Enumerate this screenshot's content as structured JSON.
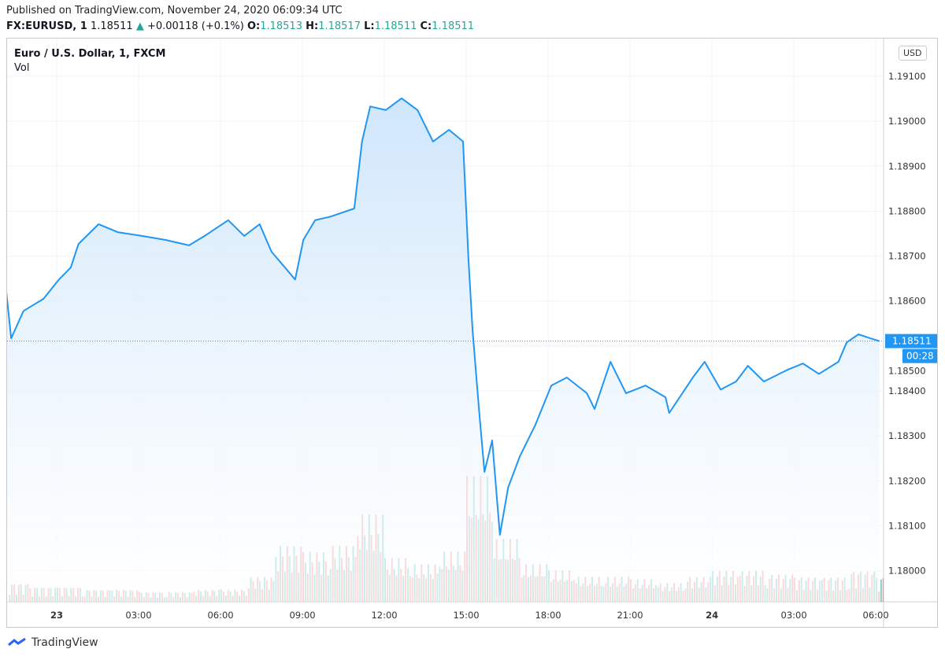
{
  "header": {
    "published": "Published on TradingView.com, November 24, 2020 06:09:34 UTC",
    "symbol": "FX:EURUSD, 1",
    "last": "1.18511",
    "change": "+0.00118 (+0.1%)",
    "o_label": "O:",
    "o": "1.18513",
    "h_label": "H:",
    "h": "1.18517",
    "l_label": "L:",
    "l": "1.18511",
    "c_label": "C:",
    "c": "1.18511"
  },
  "legend": {
    "title": "Euro / U.S. Dollar, 1, FXCM",
    "vol": "Vol"
  },
  "currency_button": "USD",
  "brand": "TradingView",
  "colors": {
    "line": "#2196f3",
    "area_top": "#cfe6fb",
    "vol_up": "#26a69a",
    "vol_down": "#ef5350",
    "price_tag": "#2196f3"
  },
  "chart_data": {
    "type": "area",
    "ylim": [
      1.1793,
      1.1913
    ],
    "grid": true,
    "y_ticks": [
      "1.18000",
      "1.18100",
      "1.18200",
      "1.18300",
      "1.18400",
      "1.18500",
      "1.18600",
      "1.18700",
      "1.18800",
      "1.18900",
      "1.19000",
      "1.19100"
    ],
    "x_ticks": [
      {
        "t": "11-23 00:00",
        "label": "23"
      },
      {
        "t": "11-23 03:00",
        "label": "03:00"
      },
      {
        "t": "11-23 06:00",
        "label": "06:00"
      },
      {
        "t": "11-23 09:00",
        "label": "09:00"
      },
      {
        "t": "11-23 12:00",
        "label": "12:00"
      },
      {
        "t": "11-23 15:00",
        "label": "15:00"
      },
      {
        "t": "11-23 18:00",
        "label": "18:00"
      },
      {
        "t": "11-23 21:00",
        "label": "21:00"
      },
      {
        "t": "11-24 00:00",
        "label": "24"
      },
      {
        "t": "11-24 03:00",
        "label": "03:00"
      },
      {
        "t": "11-24 06:00",
        "label": "06:00"
      }
    ],
    "current_price": "1.18511",
    "countdown": "00:28",
    "series": [
      [
        "11-22 22:09",
        1.18622
      ],
      [
        "11-22 22:20",
        1.18517
      ],
      [
        "11-22 22:47",
        1.18578
      ],
      [
        "11-22 23:31",
        1.18605
      ],
      [
        "11-23 00:05",
        1.18648
      ],
      [
        "11-23 00:31",
        1.18675
      ],
      [
        "11-23 00:48",
        1.18727
      ],
      [
        "11-23 01:32",
        1.18771
      ],
      [
        "11-23 02:15",
        1.18753
      ],
      [
        "11-23 03:07",
        1.18745
      ],
      [
        "11-23 03:59",
        1.18736
      ],
      [
        "11-23 04:51",
        1.18724
      ],
      [
        "11-23 05:25",
        1.18745
      ],
      [
        "11-23 06:17",
        1.1878
      ],
      [
        "11-23 06:52",
        1.18745
      ],
      [
        "11-23 07:26",
        1.18771
      ],
      [
        "11-23 07:52",
        1.1871
      ],
      [
        "11-23 08:44",
        1.18648
      ],
      [
        "11-23 09:02",
        1.18736
      ],
      [
        "11-23 09:28",
        1.1878
      ],
      [
        "11-23 10:02",
        1.18788
      ],
      [
        "11-23 10:54",
        1.18806
      ],
      [
        "11-23 11:11",
        1.18955
      ],
      [
        "11-23 11:29",
        1.19033
      ],
      [
        "11-23 12:03",
        1.19025
      ],
      [
        "11-23 12:38",
        1.19051
      ],
      [
        "11-23 13:13",
        1.19025
      ],
      [
        "11-23 13:47",
        1.18955
      ],
      [
        "11-23 14:22",
        1.18981
      ],
      [
        "11-23 14:53",
        1.18955
      ],
      [
        "11-23 15:05",
        1.18692
      ],
      [
        "11-23 15:14",
        1.18535
      ],
      [
        "11-23 15:28",
        1.1836
      ],
      [
        "11-23 15:40",
        1.1822
      ],
      [
        "11-23 15:57",
        1.1829
      ],
      [
        "11-23 16:14",
        1.1808
      ],
      [
        "11-23 16:32",
        1.18185
      ],
      [
        "11-23 16:58",
        1.18255
      ],
      [
        "11-23 17:32",
        1.18325
      ],
      [
        "11-23 18:07",
        1.18412
      ],
      [
        "11-23 18:41",
        1.1843
      ],
      [
        "11-23 19:25",
        1.18395
      ],
      [
        "11-23 19:42",
        1.1836
      ],
      [
        "11-23 20:17",
        1.18465
      ],
      [
        "11-23 20:51",
        1.18395
      ],
      [
        "11-23 21:34",
        1.18412
      ],
      [
        "11-23 22:18",
        1.18386
      ],
      [
        "11-23 22:26",
        1.18351
      ],
      [
        "11-23 23:18",
        1.1843
      ],
      [
        "11-23 23:44",
        1.18465
      ],
      [
        "11-24 00:19",
        1.18403
      ],
      [
        "11-24 00:53",
        1.18421
      ],
      [
        "11-24 01:19",
        1.18456
      ],
      [
        "11-24 01:54",
        1.18421
      ],
      [
        "11-24 02:46",
        1.18447
      ],
      [
        "11-24 03:20",
        1.18461
      ],
      [
        "11-24 03:55",
        1.18438
      ],
      [
        "11-24 04:38",
        1.18465
      ],
      [
        "11-24 04:56",
        1.18508
      ],
      [
        "11-24 05:22",
        1.18526
      ],
      [
        "11-24 05:48",
        1.18517
      ],
      [
        "11-24 06:08",
        1.18511
      ]
    ],
    "volume_hourly_relative": {
      "start": "11-22 22:00",
      "values": [
        15,
        12,
        12,
        10,
        10,
        8,
        8,
        10,
        10,
        20,
        45,
        40,
        45,
        70,
        35,
        30,
        40,
        100,
        50,
        30,
        25,
        20,
        20,
        18,
        15,
        20,
        25,
        25,
        22,
        20,
        20,
        25,
        20
      ]
    }
  }
}
